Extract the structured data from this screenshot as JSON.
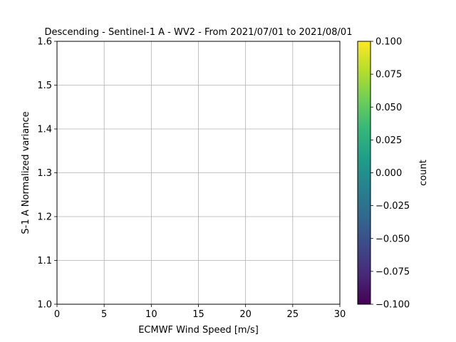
{
  "chart_data": {
    "type": "heatmap",
    "title": "Descending - Sentinel-1 A - WV2 - From 2021/07/01 to 2021/08/01",
    "xlabel": "ECMWF Wind Speed [m/s]",
    "ylabel": "S-1 A Normalized variance",
    "xlim": [
      0,
      30
    ],
    "ylim": [
      1.0,
      1.6
    ],
    "xticks": [
      "0",
      "5",
      "10",
      "15",
      "20",
      "25",
      "30"
    ],
    "yticks": [
      "1.0",
      "1.1",
      "1.2",
      "1.3",
      "1.4",
      "1.5",
      "1.6"
    ],
    "grid": true,
    "points": [],
    "colorbar": {
      "label": "count",
      "range": [
        -0.1,
        0.1
      ],
      "ticks": [
        "−0.100",
        "−0.075",
        "−0.050",
        "−0.025",
        "0.000",
        "0.025",
        "0.050",
        "0.075",
        "0.100"
      ],
      "colormap": "viridis",
      "colors": [
        "#440154",
        "#482878",
        "#3e4989",
        "#31688e",
        "#26828e",
        "#1f9e89",
        "#35b779",
        "#6ece58",
        "#b5de2b",
        "#fde725"
      ]
    }
  }
}
